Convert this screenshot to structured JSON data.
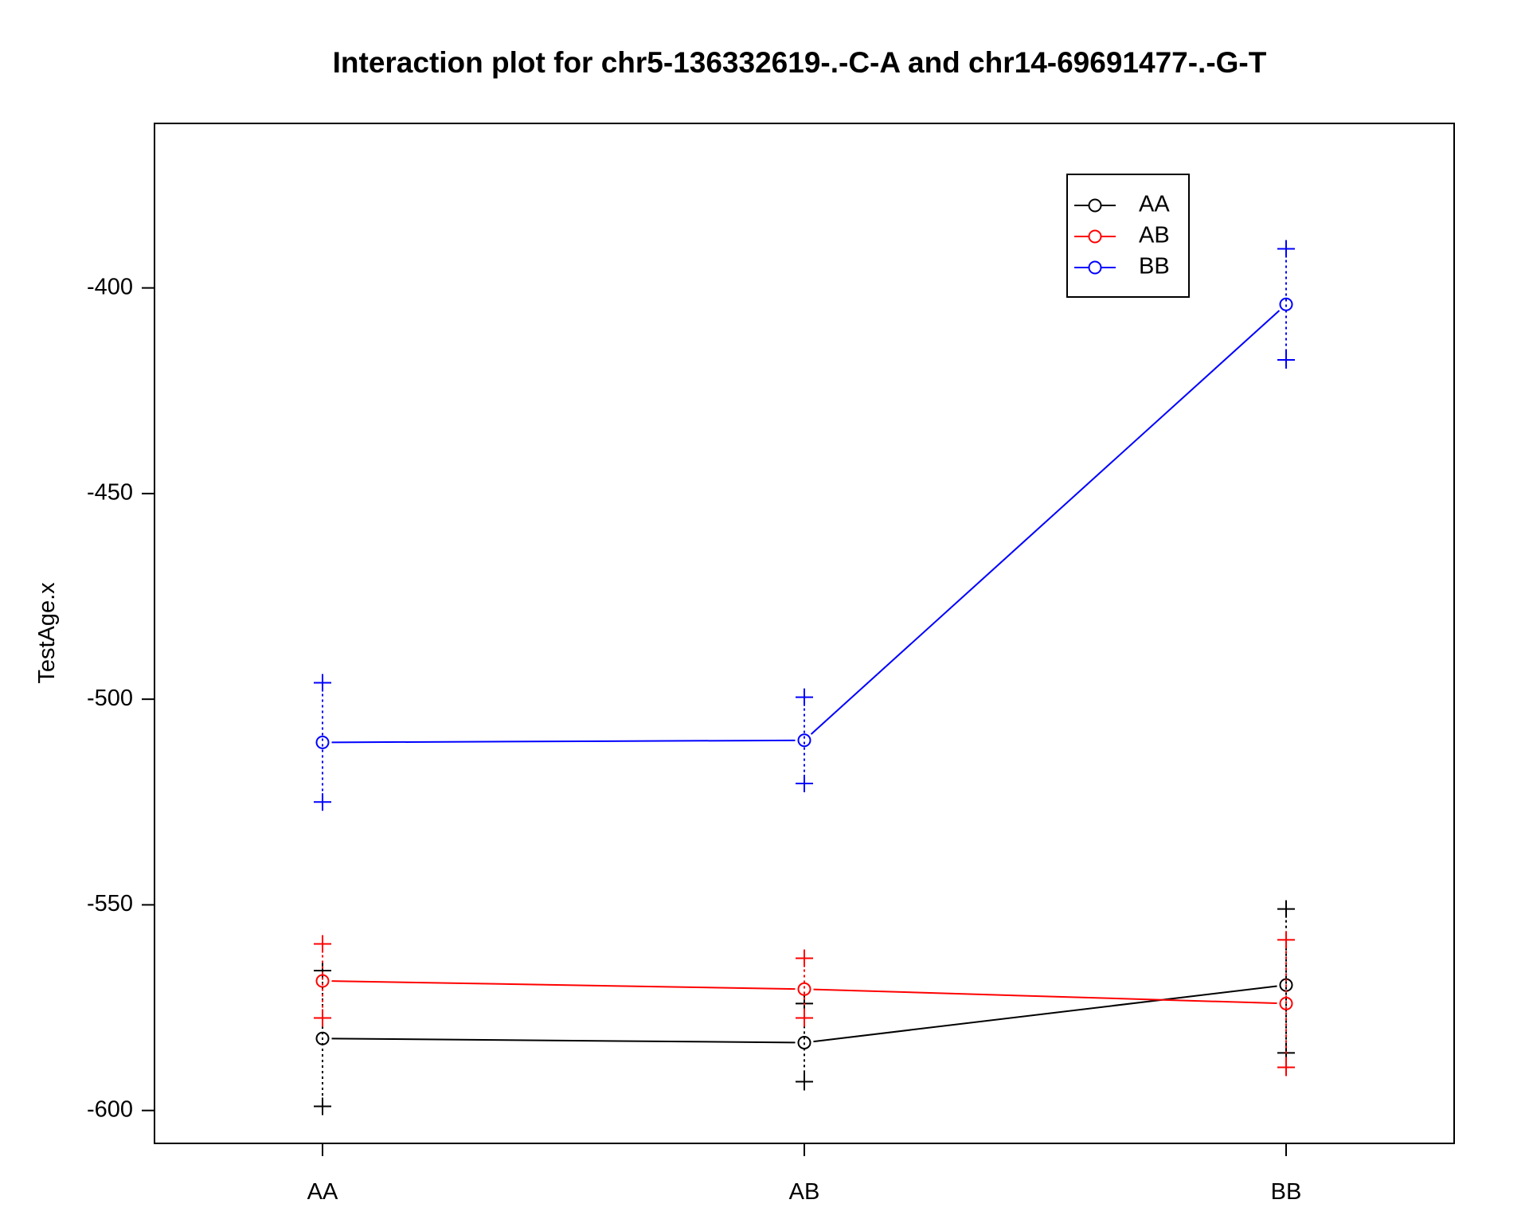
{
  "chart_data": {
    "type": "line",
    "title": "Interaction plot for chr5-136332619-.-C-A and chr14-69691477-.-G-T",
    "xlabel": "",
    "ylabel": "TestAge.x",
    "categories": [
      "AA",
      "AB",
      "BB"
    ],
    "ylim": [
      -608,
      -360
    ],
    "yticks": [
      -600,
      -550,
      -500,
      -450,
      -400
    ],
    "grid": false,
    "legend_position": "top-right",
    "series": [
      {
        "name": "AA",
        "color": "#000000",
        "values": [
          -582.5,
          -583.5,
          -569.5
        ],
        "upper": [
          -566,
          -574,
          -551
        ],
        "lower": [
          -599,
          -593,
          -586
        ]
      },
      {
        "name": "AB",
        "color": "#ff0000",
        "values": [
          -568.5,
          -570.5,
          -574
        ],
        "upper": [
          -559.5,
          -563,
          -558.5
        ],
        "lower": [
          -577.5,
          -577.5,
          -589.5
        ]
      },
      {
        "name": "BB",
        "color": "#0000ff",
        "values": [
          -510.5,
          -510,
          -404
        ],
        "upper": [
          -496,
          -499.5,
          -390.5
        ],
        "lower": [
          -525,
          -520.5,
          -417.5
        ]
      }
    ]
  }
}
